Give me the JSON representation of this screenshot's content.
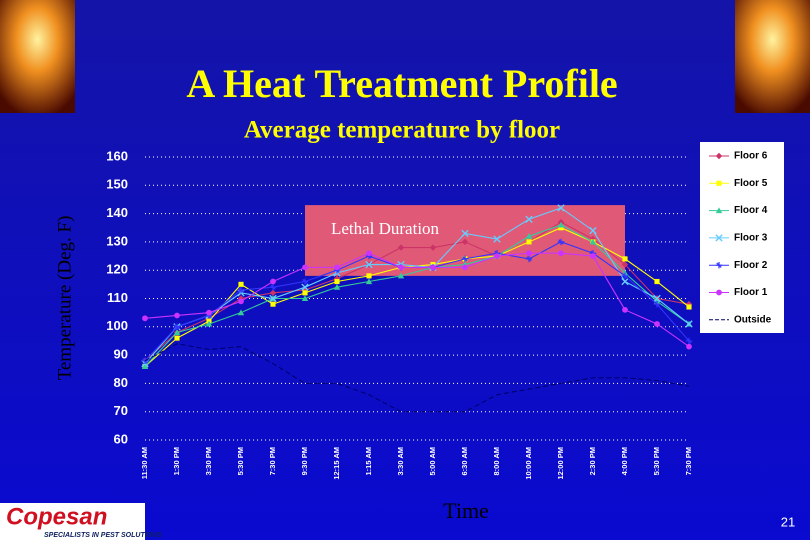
{
  "chart_data": {
    "type": "line",
    "title": "A Heat Treatment Profile",
    "subtitle": "Average temperature by floor",
    "y_label": "Temperature (Deg. F)",
    "x_label": "Time",
    "categories": [
      "11:30 AM",
      "1:30 PM",
      "3:30 PM",
      "5:30 PM",
      "7:30 PM",
      "9:30 PM",
      "12:15 AM",
      "1:15 AM",
      "3:30 AM",
      "5:00 AM",
      "6:30 AM",
      "8:00 AM",
      "10:00 AM",
      "12:00 PM",
      "2:30 PM",
      "4:00 PM",
      "5:30 PM",
      "7:30 PM"
    ],
    "series": [
      {
        "name": "Floor 6",
        "color": "#cc3366",
        "marker": "diamond",
        "values": [
          88,
          98,
          103,
          110,
          112,
          113,
          117,
          122,
          128,
          128,
          130,
          125,
          130,
          137,
          131,
          122,
          110,
          108
        ]
      },
      {
        "name": "Floor 5",
        "color": "#ffff00",
        "marker": "square",
        "values": [
          86,
          96,
          102,
          115,
          108,
          112,
          116,
          118,
          121,
          122,
          124,
          125,
          130,
          135,
          130,
          124,
          116,
          107
        ]
      },
      {
        "name": "Floor 4",
        "color": "#33cc99",
        "marker": "triangle",
        "values": [
          86,
          98,
          101,
          105,
          110,
          110,
          114,
          116,
          118,
          121,
          122,
          125,
          132,
          136,
          130,
          119,
          109,
          101
        ]
      },
      {
        "name": "Floor 3",
        "color": "#66ccff",
        "marker": "x",
        "values": [
          87,
          100,
          104,
          112,
          110,
          114,
          119,
          122,
          122,
          121,
          133,
          131,
          138,
          142,
          134,
          116,
          110,
          101
        ]
      },
      {
        "name": "Floor 2",
        "color": "#3333ff",
        "marker": "star",
        "values": [
          88,
          100,
          104,
          113,
          114,
          116,
          120,
          125,
          121,
          121,
          124,
          126,
          124,
          130,
          126,
          118,
          108,
          95
        ]
      },
      {
        "name": "Floor 1",
        "color": "#cc33ff",
        "marker": "circle",
        "values": [
          103,
          104,
          105,
          109,
          116,
          121,
          121,
          126,
          121,
          121,
          121,
          125,
          126,
          126,
          125,
          106,
          101,
          93
        ]
      },
      {
        "name": "Outside",
        "color": "#000066",
        "marker": "dash",
        "values": [
          88,
          94,
          92,
          93,
          87,
          80,
          80,
          76,
          70,
          70,
          70,
          76,
          78,
          80,
          82,
          82,
          81,
          79
        ]
      }
    ],
    "ylim": [
      60,
      160
    ],
    "yticks": [
      60,
      70,
      80,
      90,
      100,
      110,
      120,
      130,
      140,
      150,
      160
    ],
    "grid": true,
    "legend": "right",
    "annotation": {
      "text": "Lethal Duration",
      "x_range": [
        "9:30 PM",
        "4:00 PM"
      ],
      "y_range": [
        118,
        143
      ],
      "color": "#e05a78"
    }
  },
  "logo": {
    "name": "Copesan",
    "tagline": "SPECIALISTS IN PEST SOLUTIONS"
  },
  "page_number": "21"
}
